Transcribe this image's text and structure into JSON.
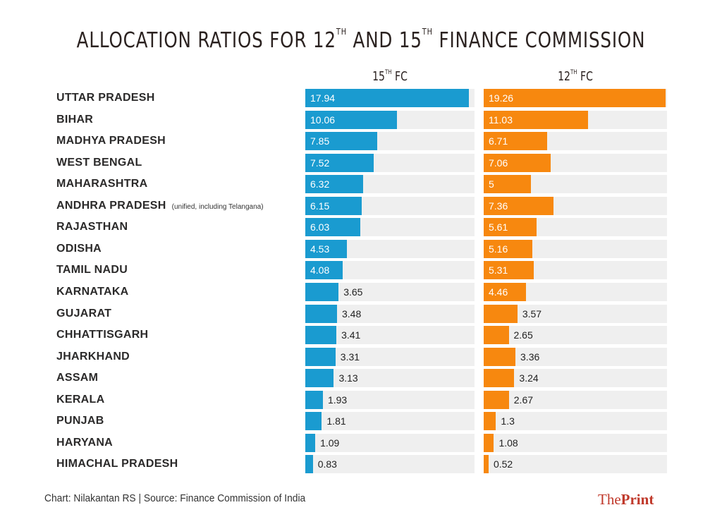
{
  "title": {
    "text_a": "ALLOCATION RATIOS FOR 12",
    "sup_a": "TH",
    "text_b": " AND 15",
    "sup_b": "TH",
    "text_c": " FINANCE COMMISSION"
  },
  "columns": [
    {
      "num": "15",
      "sup": "TH",
      "suffix": " FC",
      "color": "#1a9bd0"
    },
    {
      "num": "12",
      "sup": "TH",
      "suffix": " FC",
      "color": "#f7880f"
    }
  ],
  "footer": {
    "credit": "Chart: Nilakantan RS | Source: Finance Commission of India",
    "brand_the": "The",
    "brand_print": "Print"
  },
  "rows": [
    {
      "state": "UTTAR PRADESH",
      "note": "",
      "fc15": "17.94",
      "fc12": "19.26"
    },
    {
      "state": "BIHAR",
      "note": "",
      "fc15": "10.06",
      "fc12": "11.03"
    },
    {
      "state": "MADHYA PRADESH",
      "note": "",
      "fc15": "7.85",
      "fc12": "6.71"
    },
    {
      "state": "WEST BENGAL",
      "note": "",
      "fc15": "7.52",
      "fc12": "7.06"
    },
    {
      "state": "MAHARASHTRA",
      "note": "",
      "fc15": "6.32",
      "fc12": "5"
    },
    {
      "state": "ANDHRA PRADESH",
      "note": "(unified, including Telangana)",
      "fc15": "6.15",
      "fc12": "7.36"
    },
    {
      "state": "RAJASTHAN",
      "note": "",
      "fc15": "6.03",
      "fc12": "5.61"
    },
    {
      "state": "ODISHA",
      "note": "",
      "fc15": "4.53",
      "fc12": "5.16"
    },
    {
      "state": "TAMIL NADU",
      "note": "",
      "fc15": "4.08",
      "fc12": "5.31"
    },
    {
      "state": "KARNATAKA",
      "note": "",
      "fc15": "3.65",
      "fc12": "4.46"
    },
    {
      "state": "GUJARAT",
      "note": "",
      "fc15": "3.48",
      "fc12": "3.57"
    },
    {
      "state": "CHHATTISGARH",
      "note": "",
      "fc15": "3.41",
      "fc12": "2.65"
    },
    {
      "state": "JHARKHAND",
      "note": "",
      "fc15": "3.31",
      "fc12": "3.36"
    },
    {
      "state": "ASSAM",
      "note": "",
      "fc15": "3.13",
      "fc12": "3.24"
    },
    {
      "state": "KERALA",
      "note": "",
      "fc15": "1.93",
      "fc12": "2.67"
    },
    {
      "state": "PUNJAB",
      "note": "",
      "fc15": "1.81",
      "fc12": "1.3"
    },
    {
      "state": "HARYANA",
      "note": "",
      "fc15": "1.09",
      "fc12": "1.08"
    },
    {
      "state": "HIMACHAL PRADESH",
      "note": "",
      "fc15": "0.83",
      "fc12": "0.52"
    }
  ],
  "chart_data": {
    "type": "bar",
    "orientation": "horizontal",
    "title": "Allocation Ratios for 12th and 15th Finance Commission",
    "xlabel": "",
    "ylabel": "",
    "categories": [
      "Uttar Pradesh",
      "Bihar",
      "Madhya Pradesh",
      "West Bengal",
      "Maharashtra",
      "Andhra Pradesh (unified, including Telangana)",
      "Rajasthan",
      "Odisha",
      "Tamil Nadu",
      "Karnataka",
      "Gujarat",
      "Chhattisgarh",
      "Jharkhand",
      "Assam",
      "Kerala",
      "Punjab",
      "Haryana",
      "Himachal Pradesh"
    ],
    "series": [
      {
        "name": "15th FC",
        "color": "#1a9bd0",
        "values": [
          17.94,
          10.06,
          7.85,
          7.52,
          6.32,
          6.15,
          6.03,
          4.53,
          4.08,
          3.65,
          3.48,
          3.41,
          3.31,
          3.13,
          1.93,
          1.81,
          1.09,
          0.83
        ]
      },
      {
        "name": "12th FC",
        "color": "#f7880f",
        "values": [
          19.26,
          11.03,
          6.71,
          7.06,
          5,
          7.36,
          5.61,
          5.16,
          5.31,
          4.46,
          3.57,
          2.65,
          3.36,
          3.24,
          2.67,
          1.3,
          1.08,
          0.52
        ]
      }
    ],
    "grid": false,
    "legend": "column headers",
    "source": "Chart: Nilakantan RS | Source: Finance Commission of India"
  }
}
